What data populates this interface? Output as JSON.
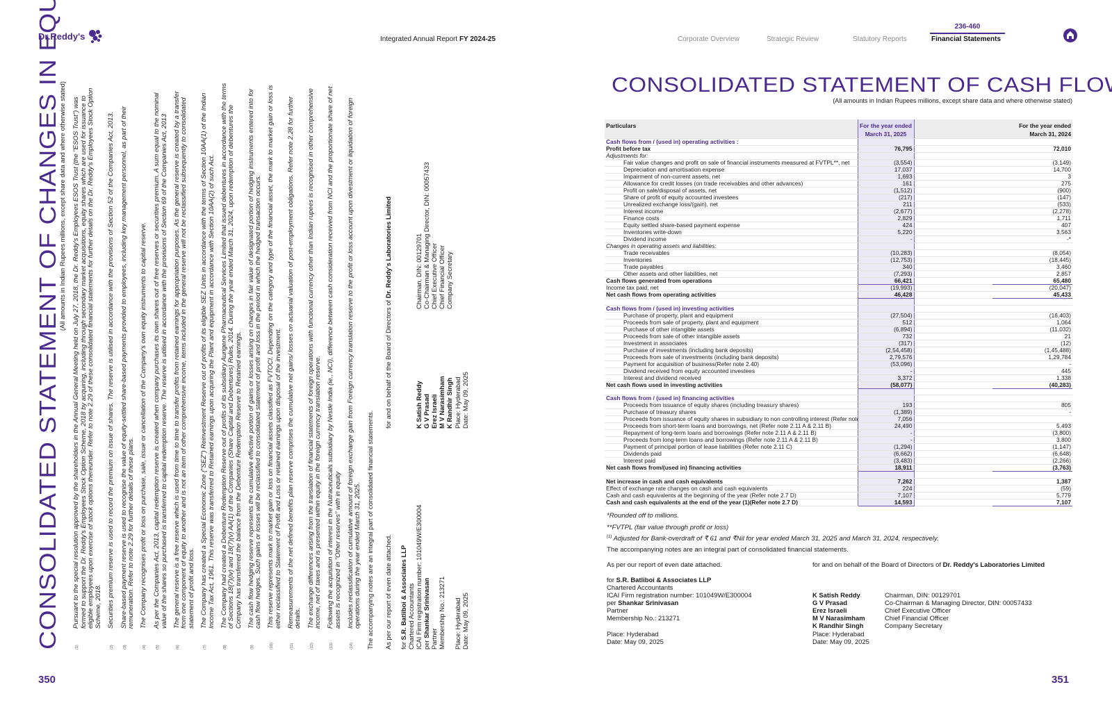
{
  "header": {
    "logo_text": "Dr.Reddy's",
    "report_title": "Integrated Annual Report",
    "report_year": "FY 2024-25",
    "nav": [
      {
        "label": "Corporate Overview",
        "active": false
      },
      {
        "label": "Strategic Review",
        "active": false
      },
      {
        "label": "Statutory Reports",
        "active": false
      },
      {
        "label": "Financial Statements",
        "active": true
      }
    ],
    "page_range": "236-460",
    "home_icon": "home-icon",
    "brand_color": "#4a2a8e"
  },
  "left_page": {
    "page_number": "350",
    "title": "CONSOLIDATED STATEMENT OF CHANGES IN EQUITY",
    "subtitle": "(All amounts in Indian Rupees millions, except share data and where otherwise stated)",
    "notes": [
      {
        "num": "(1)",
        "text": "Pursuant to the special resolution approved by the shareholders in the Annual General Meeting held on July 27, 2018, the Dr. Reddy's Employees ESOS Trust (the \"ESOS Trust\") was formed to support the Dr. Reddy's Employees Stock Option Scheme, 2018 by acquiring, including through secondary market acquisitions, equity shares which are used for issuance to eligible employees upon exercise of stock options thereunder. Refer to note 2.29 of these consolidated financial statements for further details on the Dr. Reddy's Employees Stock Option Scheme, 2018."
      },
      {
        "num": "(2)",
        "text": "Securities premium reserve is used to record the premium on issue of shares. The reserve is utilised in accordance with the provisions of Section 52 of the Companies Act, 2013."
      },
      {
        "num": "(3)",
        "text": "Share-based payment reserve is used to recognise the value of equity-settled share-based payments provided to employees, including key management personnel, as part of their remuneration. Refer to note 2.29 for further details of these plans."
      },
      {
        "num": "(4)",
        "text": "The Company recognises profit or loss on purchase, sale, issue or cancellation of the Company's own equity instruments to capital reserve."
      },
      {
        "num": "(5)",
        "text": "As per the Companies Act, 2013, capital redemption reserve is created when company purchases its own shares out of free reserves or securities premium. A sum equal to the nominal value of the shares so purchased is transferred to capital redemption reserve. The reserve is utilised in accordance with the provisions of Section 69 of the Companies Act, 2013"
      },
      {
        "num": "(6)",
        "text": "The general reserve is a free reserve which is used from time to time to transfer profits from retained earnings for appropriation purposes. As the general reserve is created by a transfer from one component of equity to another and is not an item of other comprehensive income, items included in the general reserve will not be reclassified subsequently to consolidated statement of profit and loss."
      },
      {
        "num": "(7)",
        "text": "The Company has created a Special Economic Zone (\"SEZ\") Reinvestment Reserve out of profits of its eligible SEZ Units in accordance with the terms of Section 10AA(1) of the Indian Income Tax Act, 1961. This reserve was transferred to Retained earnings upon acquiring the Plant and equipment in accordance with Section 10AA(2) of such Act."
      },
      {
        "num": "(8)",
        "text": "The Company had created a Debenture Redemption Reserve out of profits of its subsidiary Aurigene Pharmaceutical Services Limited that issued debentures in accordance with the terms of Sections 18(7)(iv) and 18(7)(v) AA(1) of the Companies (Share Capital and Debentures) Rules, 2014. During the year ended March 31, 2024, upon redemption of debentures the Company has transferred the balance from the Debenture Redemption Reserve to Retained earnings."
      },
      {
        "num": "(9)",
        "text": "The cash flow hedging reserve represents the cumulative effective portion of gains or losses arising on changes in fair value of designated portion of hedging instruments entered into for cash flow hedges. Such gains or losses will be reclassified to consolidated statement of profit and loss in the period in which the hedged transaction occurs."
      },
      {
        "num": "(10)",
        "text": "This reserve represents mark to market gain or loss on financial assets classified as FVTOCI. Depending on the category and type of the financial asset, the mark to market gain or loss is either reclassified to Statement of Profit and Loss or retained earnings upon disposal of the investment."
      },
      {
        "num": "(11)",
        "text": "Remeasurements of the net defined benefits plan reserve comprises the cumulative net gains/ losses on actuarial valuation of post-employment obligations. Refer note 2.28 for further details."
      },
      {
        "num": "(12)",
        "text": "The exchange differences arising from the translation of financial statements of foreign operations with functional currency other than Indian rupees is recognised in other comprehensive income, net of taxes and is presented within equity in the foreign currency translation reserve."
      },
      {
        "num": "(13)",
        "text": "Following the acquisition of interest in the Nutraceuticals subsidiary by Nestle India (ie., NCI), difference between cash consideration received from NCI and the proportionate share of net assets is recognized in \"Other reserves\" with in equity"
      },
      {
        "num": "(14)",
        "text": "Includes reclassification of cumulative amount of foreign exchange gain from Foreign currency translation reserve to the profit or loss account upon divestment or liquidation of foreign operations during the year ended March 31, 2025."
      }
    ],
    "accompanying_note": "The accompanying notes are an integral part of consolidated financial statements."
  },
  "right_page": {
    "page_number": "351",
    "title": "CONSOLIDATED STATEMENT OF CASH FLOW",
    "subtitle": "(All amounts in Indian Rupees millions, except share data and where otherwise stated)",
    "table": {
      "columns": [
        "Particulars",
        "For the year ended",
        "March 31, 2025",
        "For the year ended",
        "March 31, 2024"
      ],
      "rows": [
        {
          "type": "section",
          "label": "Cash flows from / (used in) operating activities :",
          "v2025": "",
          "v2024": ""
        },
        {
          "type": "bold",
          "label": "Profit before tax",
          "v2025": "76,795",
          "v2024": "72,010"
        },
        {
          "type": "italic",
          "label": "Adjustments for:",
          "v2025": "",
          "v2024": ""
        },
        {
          "type": "item",
          "label": "Fair value changes and profit on sale of financial instruments measured at FVTPL**, net",
          "v2025": "(3,554)",
          "v2024": "(3,149)"
        },
        {
          "type": "item",
          "label": "Depreciation and amortisation expense",
          "v2025": "17,037",
          "v2024": "14,700"
        },
        {
          "type": "item",
          "label": "Impairment of non-current assets, net",
          "v2025": "1,693",
          "v2024": "3"
        },
        {
          "type": "item",
          "label": "Allowance for credit losses (on trade receivables and other advances)",
          "v2025": "161",
          "v2024": "275"
        },
        {
          "type": "item",
          "label": "Profit on sale/disposal of assets, net",
          "v2025": "(1,512)",
          "v2024": "(900)"
        },
        {
          "type": "item",
          "label": "Share of profit of equity accounted investees",
          "v2025": "(217)",
          "v2024": "(147)"
        },
        {
          "type": "item",
          "label": "Unrealized exchange loss/(gain), net",
          "v2025": "211",
          "v2024": "(533)"
        },
        {
          "type": "item",
          "label": "Interest income",
          "v2025": "(2,677)",
          "v2024": "(2,278)"
        },
        {
          "type": "item",
          "label": "Finance costs",
          "v2025": "2,829",
          "v2024": "1,711"
        },
        {
          "type": "item",
          "label": "Equity settled share-based payment expense",
          "v2025": "424",
          "v2024": "407"
        },
        {
          "type": "item",
          "label": "Inventories write-down",
          "v2025": "5,220",
          "v2024": "3,563"
        },
        {
          "type": "item",
          "label": "Dividend income",
          "v2025": "-",
          "v2024": "-*"
        },
        {
          "type": "italic",
          "label": "Changes in operating assets and liabilities:",
          "v2025": "",
          "v2024": ""
        },
        {
          "type": "item",
          "label": "Trade receivables",
          "v2025": "(10,283)",
          "v2024": "(8,054)"
        },
        {
          "type": "item",
          "label": "Inventories",
          "v2025": "(12,753)",
          "v2024": "(18,445)"
        },
        {
          "type": "item",
          "label": "Trade payables",
          "v2025": "340",
          "v2024": "3,460"
        },
        {
          "type": "item",
          "label": "Other assets and other liabilities, net",
          "v2025": "(7,293)",
          "v2024": "2,857"
        },
        {
          "type": "total",
          "label": "Cash flows generated from operations",
          "v2025": "66,421",
          "v2024": "65,480"
        },
        {
          "type": "plain",
          "label": "Income tax paid, net",
          "v2025": "(19,993)",
          "v2024": "(20,047)"
        },
        {
          "type": "total",
          "label": "Net cash flows from operating activities",
          "v2025": "46,428",
          "v2024": "45,433"
        },
        {
          "type": "blank",
          "label": "",
          "v2025": "",
          "v2024": ""
        },
        {
          "type": "section",
          "label": "Cash flows from / (used in) investing activities",
          "v2025": "",
          "v2024": ""
        },
        {
          "type": "item",
          "label": "Purchase of property, plant and equipment",
          "v2025": "(27,504)",
          "v2024": "(16,403)"
        },
        {
          "type": "item",
          "label": "Proceeds from sale of property, plant and equipment",
          "v2025": "512",
          "v2024": "1,064"
        },
        {
          "type": "item",
          "label": "Purchase of other intangible assets",
          "v2025": "(6,894)",
          "v2024": "(11,032)"
        },
        {
          "type": "item",
          "label": "Proceeds from sale of other intangible assets",
          "v2025": "732",
          "v2024": "21"
        },
        {
          "type": "item",
          "label": "Investment in associates",
          "v2025": "(317)",
          "v2024": "(12)"
        },
        {
          "type": "item",
          "label": "Purchase of investments (including bank deposits)",
          "v2025": "(2,54,458)",
          "v2024": "(1,45,488)"
        },
        {
          "type": "item",
          "label": "Proceeds from sale of investments (including bank deposits)",
          "v2025": "2,79,576",
          "v2024": "1,29,784"
        },
        {
          "type": "item",
          "label": "Payment for acquisition of business(Refer note 2.40)",
          "v2025": "(53,096)",
          "v2024": "-"
        },
        {
          "type": "item",
          "label": "Dividend received from equity accounted investees",
          "v2025": "-",
          "v2024": "445"
        },
        {
          "type": "item",
          "label": "Interest and dividend received",
          "v2025": "3,372",
          "v2024": "1,338"
        },
        {
          "type": "total",
          "label": "Net cash flows used in investing activities",
          "v2025": "(58,077)",
          "v2024": "(40,283)"
        },
        {
          "type": "blank",
          "label": "",
          "v2025": "",
          "v2024": ""
        },
        {
          "type": "section",
          "label": "Cash flows from / (used in) financing activities",
          "v2025": "",
          "v2024": ""
        },
        {
          "type": "item",
          "label": "Proceeds from issuance of equity shares (including treasury shares)",
          "v2025": "193",
          "v2024": "805"
        },
        {
          "type": "item",
          "label": "Purchase of treasury shares",
          "v2025": "(1,389)",
          "v2024": "-"
        },
        {
          "type": "item",
          "label": "Proceeds from issuance of equity shares in subsidiary to non controlling interest (Refer note 2.40 A)",
          "v2025": "7,056",
          "v2024": ""
        },
        {
          "type": "item",
          "label": "Proceeds from short-term loans and borrowings, net (Refer note 2.11 A & 2.11 B)",
          "v2025": "24,490",
          "v2024": "5,493"
        },
        {
          "type": "item",
          "label": "Repayment of long-term loans and borrowings  (Refer note 2.11 A & 2.11 B)",
          "v2025": "-",
          "v2024": "(3,800)"
        },
        {
          "type": "item",
          "label": "Proceeds from long-term loans and borrowings (Refer note 2.11 A & 2.11 B)",
          "v2025": "-",
          "v2024": "3,800"
        },
        {
          "type": "item",
          "label": "Payment of principal portion of lease liabilities (Refer note 2.11 C)",
          "v2025": "(1,294)",
          "v2024": "(1,147)"
        },
        {
          "type": "item",
          "label": "Dividends paid",
          "v2025": "(6,662)",
          "v2024": "(6,648)"
        },
        {
          "type": "item",
          "label": "Interest paid",
          "v2025": "(3,483)",
          "v2024": "(2,266)"
        },
        {
          "type": "total",
          "label": "Net cash flows from/(used in) financing activities",
          "v2025": "18,911",
          "v2024": "(3,763)"
        },
        {
          "type": "blank",
          "label": "",
          "v2025": "",
          "v2024": ""
        },
        {
          "type": "bold",
          "label": "Net increase in cash and cash equivalents",
          "v2025": "7,262",
          "v2024": "1,387"
        },
        {
          "type": "plain",
          "label": "Effect of exchange rate changes on cash and cash equivalents",
          "v2025": "224",
          "v2024": "(59)"
        },
        {
          "type": "plain",
          "label": "Cash and cash equivalents at the beginning of the year (Refer note 2.7 D)",
          "v2025": "7,107",
          "v2024": "5,779"
        },
        {
          "type": "total",
          "label": "Cash and cash equivalents at the end of the year (1)(Refer note 2.7 D)",
          "v2025": "14,593",
          "v2024": "7,107"
        }
      ]
    },
    "footnotes": {
      "rounded": "*Rounded off to millions.",
      "fvtpl": "**FVTPL (fair value through profit or loss)",
      "overdraft_marker": "(1)",
      "overdraft": "Adjusted for Bank-overdraft of ₹  61 and  ₹Nil for year ended March 31, 2025 and March 31, 2024, respectively.",
      "accompanying": "The accompanying notes are an integral part of consolidated financial statements."
    }
  },
  "signatures": {
    "auditor_intro": "As per our report of even date attached.",
    "board_intro": "for and on behalf of the Board of Directors of",
    "company": "Dr. Reddy's Laboratories Limited",
    "firm_prefix": "for",
    "firm": "S.R. Batliboi & Associates LLP",
    "firm_type": "Chartered Accountants",
    "firm_reg": "ICAI Firm registration number: 101049W/E300004",
    "partner_prefix": "per",
    "partner": "Shankar Srinivasan",
    "partner_role": "Partner",
    "membership": "Membership No.: 213271",
    "directors": [
      {
        "name": "K Satish Reddy",
        "title": "Chairman, DIN: 00129701"
      },
      {
        "name": "G V Prasad",
        "title": "Co-Chairman & Managing Director, DIN: 00057433"
      },
      {
        "name": "Erez Israeli",
        "title": "Chief Executive Officer"
      },
      {
        "name": "M V Narasimham",
        "title": "Chief Financial Officer"
      },
      {
        "name": "K Randhir Singh",
        "title": "Company Secretary"
      }
    ],
    "place": "Place: Hyderabad",
    "date": "Date: May 09, 2025"
  }
}
